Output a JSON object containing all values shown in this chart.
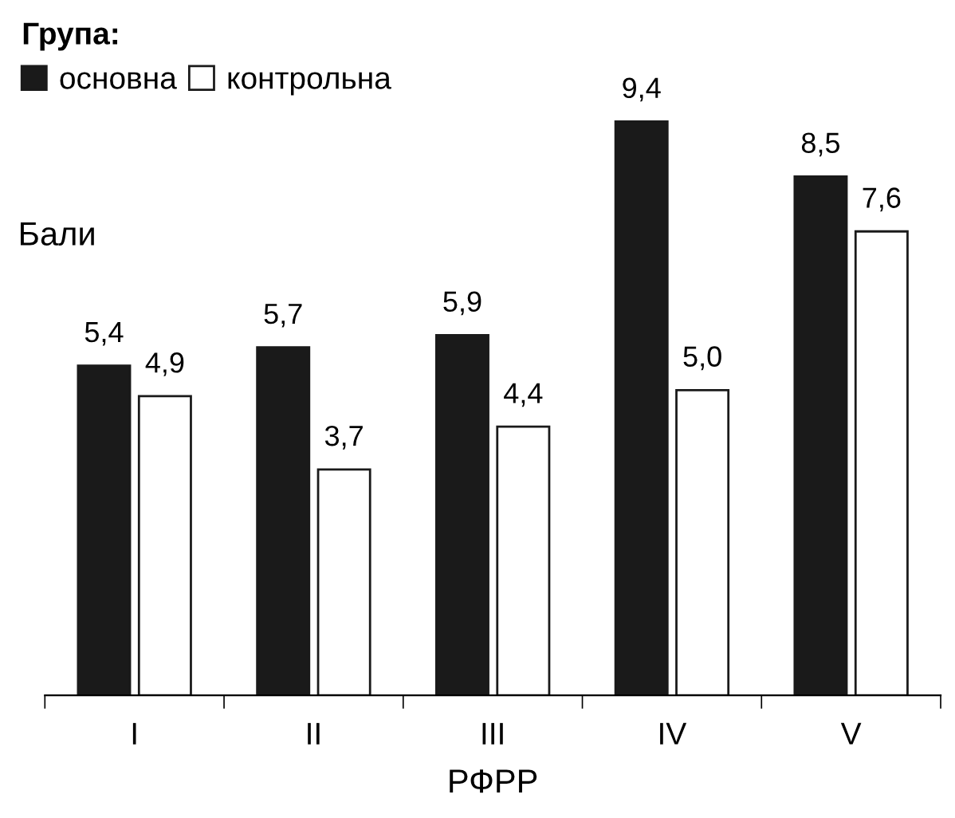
{
  "chart_data": {
    "type": "bar",
    "xlabel": "РФРР",
    "ylabel": "Бали",
    "legend_title": "Група:",
    "legend": "top left",
    "categories": [
      "I",
      "II",
      "III",
      "IV",
      "V"
    ],
    "series": [
      {
        "name": "основна",
        "color": "#1a1a1a",
        "values": [
          5.4,
          5.7,
          5.9,
          9.4,
          8.5
        ],
        "value_labels": [
          "5,4",
          "5,7",
          "5,9",
          "9,4",
          "8,5"
        ]
      },
      {
        "name": "контрольна",
        "color": "#ffffff",
        "values": [
          4.9,
          3.7,
          4.4,
          5.0,
          7.6
        ],
        "value_labels": [
          "4,9",
          "3,7",
          "4,4",
          "5,0",
          "7,6"
        ]
      }
    ],
    "grid": false
  }
}
